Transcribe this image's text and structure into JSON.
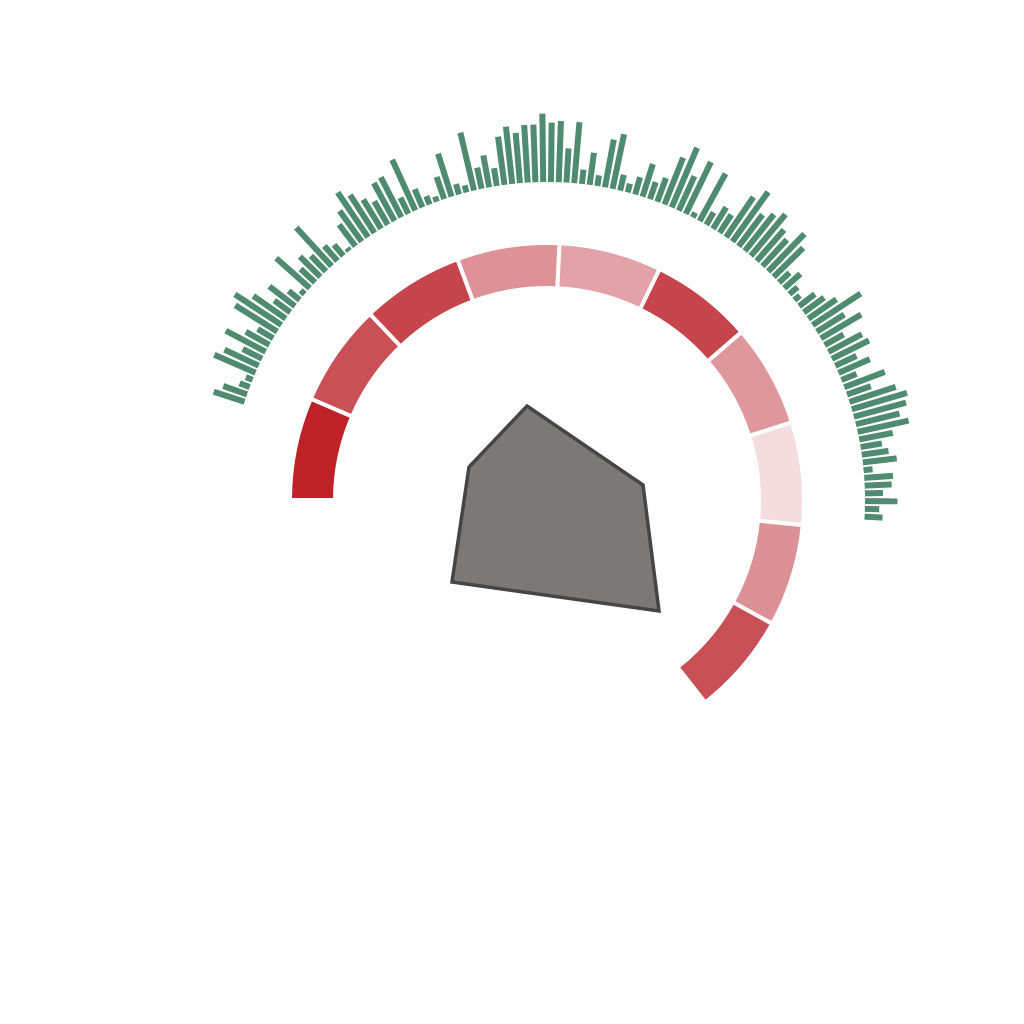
{
  "colors": {
    "ticks": "#4f8b6f",
    "ring_separator": "#ffffff",
    "polygon_fill": "#7a7977",
    "polygon_stroke": "#454545",
    "background": "#ffffff"
  },
  "ring_segments": [
    {
      "color": "#bf2129"
    },
    {
      "color": "#c95057"
    },
    {
      "color": "#c6454d"
    },
    {
      "color": "#df9198"
    },
    {
      "color": "#e3a2a7"
    },
    {
      "color": "#c6444c"
    },
    {
      "color": "#df979c"
    },
    {
      "color": "#f5dcdf"
    },
    {
      "color": "#dc9197"
    },
    {
      "color": "#c94f56"
    }
  ],
  "outer_ticks": [
    0.36,
    0.28,
    0.12,
    0.08,
    0.5,
    0.42,
    0.24,
    0.5,
    0.3,
    0.2,
    0.55,
    0.62,
    0.44,
    0.22,
    0.36,
    0.16,
    0.06,
    0.5,
    0.22,
    0.32,
    0.24,
    0.58,
    0.22,
    0.16,
    0.04,
    0.3,
    0.42,
    0.6,
    0.5,
    0.38,
    0.3,
    0.48,
    0.5,
    0.2,
    0.62,
    0.22,
    0.1,
    0.06,
    0.26,
    0.5,
    0.12,
    0.08,
    0.66,
    0.24,
    0.36,
    0.2,
    0.54,
    0.64,
    0.56,
    0.64,
    0.64,
    0.76,
    0.66,
    0.68,
    0.38,
    0.68,
    0.16,
    0.36,
    0.12,
    0.54,
    0.62,
    0.18,
    0.1,
    0.2,
    0.38,
    0.2,
    0.28,
    0.56,
    0.72,
    0.42,
    0.64,
    0.06,
    0.6,
    0.16,
    0.28,
    0.24,
    0.54,
    0.68,
    0.44,
    0.52,
    0.6,
    0.46,
    0.4,
    0.58,
    0.46,
    0.16,
    0.24,
    0.12,
    0.08,
    0.22,
    0.28,
    0.38,
    0.64,
    0.36,
    0.52,
    0.24,
    0.42,
    0.46,
    0.26,
    0.38,
    0.18,
    0.48,
    0.28,
    0.54,
    0.64,
    0.6,
    0.5,
    0.58,
    0.38,
    0.24,
    0.3,
    0.38,
    0.1,
    0.32,
    0.3,
    0.2,
    0.36,
    0.16,
    0.2
  ],
  "polygon_shape": "pentagon"
}
